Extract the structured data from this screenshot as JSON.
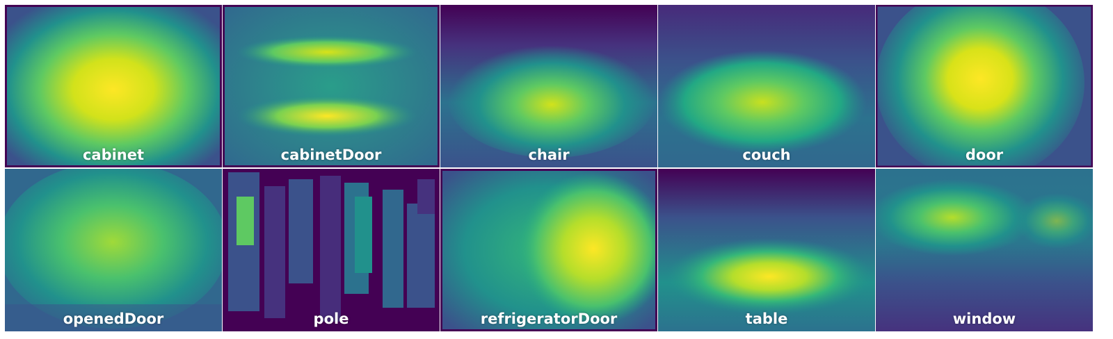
{
  "panels": [
    {
      "label": "cabinet",
      "pattern": "big-center-blob"
    },
    {
      "label": "cabinetDoor",
      "pattern": "two-horizontal-bands"
    },
    {
      "label": "chair",
      "pattern": "lower-center-blob"
    },
    {
      "label": "couch",
      "pattern": "center-band"
    },
    {
      "label": "door",
      "pattern": "vertical-center-blob"
    },
    {
      "label": "openedDoor",
      "pattern": "wide-diffuse"
    },
    {
      "label": "pole",
      "pattern": "vertical-strips"
    },
    {
      "label": "refrigeratorDoor",
      "pattern": "right-blob"
    },
    {
      "label": "table",
      "pattern": "lower-horizontal-blob"
    },
    {
      "label": "window",
      "pattern": "upper-band"
    }
  ],
  "colormap": [
    "#440154",
    "#3b528b",
    "#21918c",
    "#5ec962",
    "#fde725"
  ]
}
